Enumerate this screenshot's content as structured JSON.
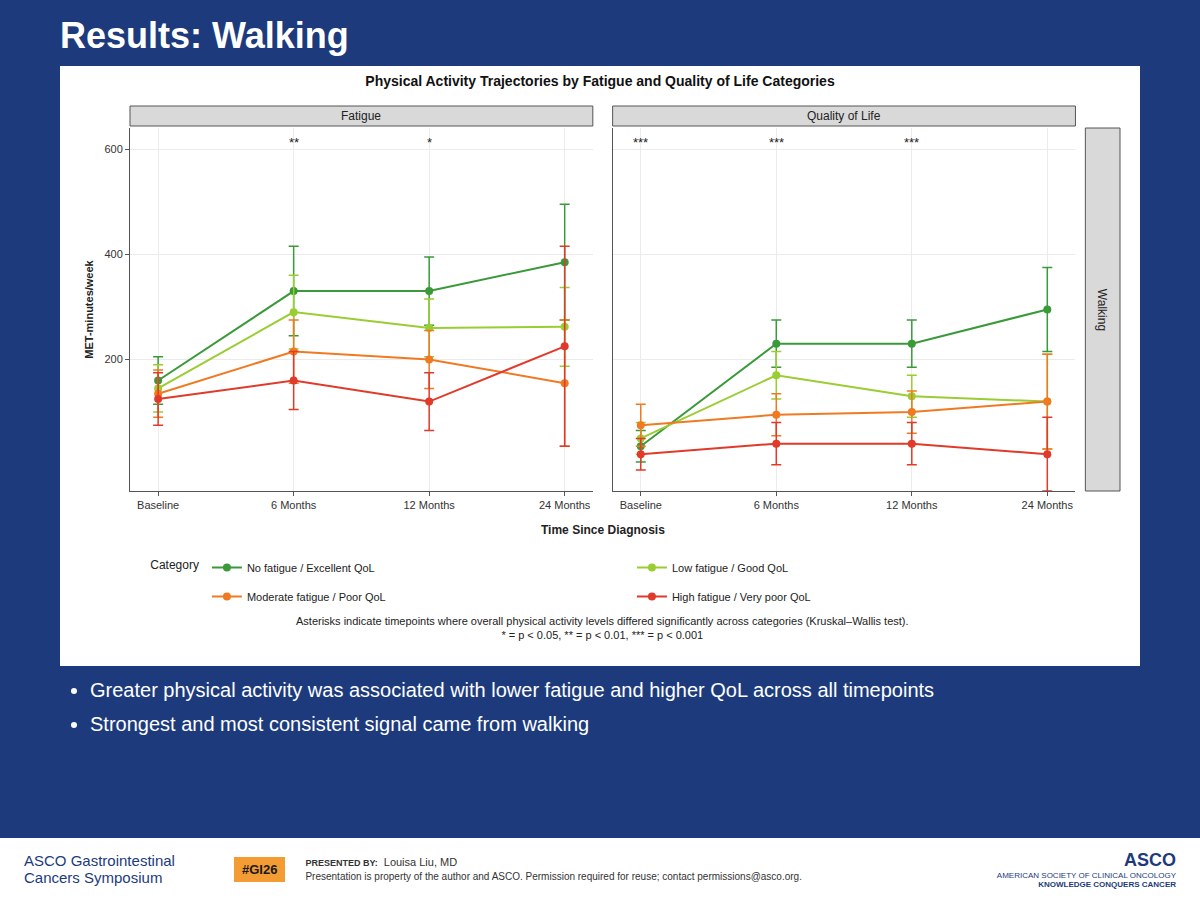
{
  "slide": {
    "heading": "Results: Walking",
    "bullets": [
      "Greater physical activity was associated with lower fatigue and higher QoL across all timepoints",
      "Strongest and most consistent signal came from walking"
    ],
    "footer": {
      "symposium": "ASCO Gastrointestinal Cancers Symposium",
      "hashtag": "#GI26",
      "presented_by_label": "PRESENTED BY:",
      "presenter": "Louisa Liu, MD",
      "notice": "Presentation is property of the author and ASCO. Permission required for reuse; contact permissions@asco.org.",
      "org": "ASCO",
      "org_name": "AMERICAN SOCIETY OF CLINICAL ONCOLOGY",
      "tagline": "KNOWLEDGE CONQUERS CANCER"
    }
  },
  "chart_data": {
    "type": "line",
    "title": "Physical Activity Trajectories by Fatigue and Quality of Life Categories",
    "x_label": "Time Since Diagnosis",
    "y_label": "MET-minutes/week",
    "categories": [
      "Baseline",
      "6 Months",
      "12 Months",
      "24 Months"
    ],
    "ylim": [
      -50,
      640
    ],
    "yticks": [
      200,
      400,
      600
    ],
    "grid": true,
    "marker": "circle",
    "legend": "bottom",
    "legend_title": "Category",
    "facet_label": "Walking",
    "notes": [
      "Asterisks indicate timepoints where overall physical activity levels differed significantly across categories (Kruskal–Wallis test).",
      "* = p < 0.05, ** = p < 0.01, *** = p < 0.001"
    ],
    "panels": [
      {
        "title": "Fatigue",
        "significance": [
          {
            "x": "6 Months",
            "label": "**"
          },
          {
            "x": "12 Months",
            "label": "*"
          }
        ],
        "series": [
          {
            "name": "No fatigue / Excellent QoL",
            "color": "#3a9a3a",
            "values": [
              160,
              330,
              330,
              385
            ],
            "errors": [
              45,
              85,
              65,
              110
            ]
          },
          {
            "name": "Low fatigue / Good QoL",
            "color": "#9acd32",
            "values": [
              145,
              290,
              260,
              262
            ],
            "errors": [
              45,
              70,
              55,
              75
            ]
          },
          {
            "name": "Moderate fatigue / Poor QoL",
            "color": "#f07a22",
            "values": [
              135,
              215,
              200,
              155
            ],
            "errors": [
              45,
              60,
              55,
              120
            ]
          },
          {
            "name": "High fatigue / Very poor QoL",
            "color": "#e03a2a",
            "values": [
              125,
              160,
              120,
              225
            ],
            "errors": [
              50,
              55,
              55,
              190
            ]
          }
        ]
      },
      {
        "title": "Quality of Life",
        "significance": [
          {
            "x": "Baseline",
            "label": "***"
          },
          {
            "x": "6 Months",
            "label": "***"
          },
          {
            "x": "12 Months",
            "label": "***"
          }
        ],
        "series": [
          {
            "name": "No fatigue / Excellent QoL",
            "color": "#3a9a3a",
            "values": [
              35,
              230,
              230,
              295
            ],
            "errors": [
              30,
              45,
              45,
              80
            ]
          },
          {
            "name": "Low fatigue / Good QoL",
            "color": "#9acd32",
            "values": [
              50,
              170,
              130,
              120
            ],
            "errors": [
              30,
              45,
              40,
              90
            ]
          },
          {
            "name": "Moderate fatigue / Poor QoL",
            "color": "#f07a22",
            "values": [
              75,
              95,
              100,
              120
            ],
            "errors": [
              40,
              40,
              40,
              90
            ]
          },
          {
            "name": "High fatigue / Very poor QoL",
            "color": "#e03a2a",
            "values": [
              20,
              40,
              40,
              20
            ],
            "errors": [
              30,
              40,
              40,
              70
            ]
          }
        ]
      }
    ]
  }
}
